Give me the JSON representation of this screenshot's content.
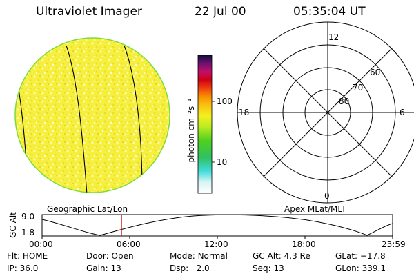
{
  "header": {
    "instrument": "Ultraviolet Imager",
    "date": "22 Jul 00",
    "time": "05:35:04 UT"
  },
  "colorbar": {
    "unit_label": "photon cm⁻²s⁻¹",
    "ticks": [
      "100",
      "10"
    ]
  },
  "polar": {
    "mlt_labels": {
      "top": "12",
      "left": "18",
      "right": "6",
      "bottom": "0"
    },
    "lat_labels": [
      "60",
      "70",
      "80"
    ]
  },
  "panel_labels": {
    "left": "Geographic Lat/Lon",
    "right": "Apex MLat/MLT"
  },
  "altitude_plot": {
    "ylabel": "GC Alt",
    "yticks": [
      "9.0",
      "1.8"
    ],
    "xticks": [
      "00:00",
      "06:00",
      "12:00",
      "18:00",
      "23:59"
    ],
    "marker_time": "05:35"
  },
  "status": {
    "row1": [
      {
        "label": "Flt:",
        "value": "HOME"
      },
      {
        "label": "Door:",
        "value": "Open"
      },
      {
        "label": "Mode:",
        "value": "Normal"
      },
      {
        "label": "GC Alt:",
        "value": "4.3 Re"
      },
      {
        "label": "GLat:",
        "value": "−17.8"
      }
    ],
    "row2": [
      {
        "label": "IP:",
        "value": "36.0"
      },
      {
        "label": "Gain:",
        "value": "13"
      },
      {
        "label": "Dsp:",
        "value": "2.0"
      },
      {
        "label": "Seq:",
        "value": "13"
      },
      {
        "label": "GLon:",
        "value": "339.1"
      }
    ]
  },
  "colors": {
    "disk_fill": "#f4f03a",
    "disk_edge": "#7ddc3a",
    "marker": "#d01010"
  }
}
